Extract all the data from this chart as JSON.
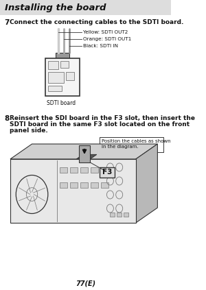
{
  "bg_color": "#ffffff",
  "page_bg": "#f0f0f0",
  "title": "Installing the board",
  "step7_num": "7",
  "step7_text": "Connect the connecting cables to the SDTI board.",
  "step8_num": "8",
  "step8_line1": "Reinsert the SDI board in the F3 slot, then insert the",
  "step8_line2": "SDTI board in the same F3 slot located on the front",
  "step8_line3": "panel side.",
  "note_line1": "Position the cables as shown",
  "note_line2": "in the diagram.",
  "cable_label1": "Yellow: SDTI OUT2",
  "cable_label2": "Orange: SDTI OUT1",
  "cable_label3": "Black: SDTI IN",
  "board_label": "SDTI board",
  "f3_label": "F3",
  "page_number": "77(E)",
  "text_color": "#111111",
  "line_color": "#333333",
  "mid_color": "#777777",
  "light_color": "#aaaaaa",
  "box_fill": "#e8e8e8"
}
